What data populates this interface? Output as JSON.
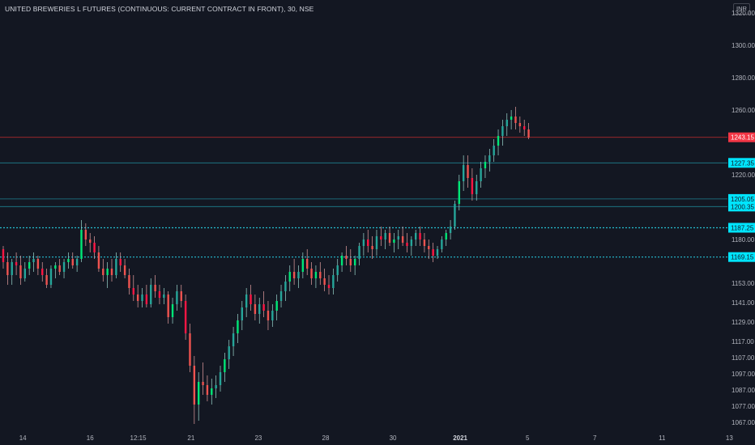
{
  "header": {
    "title": "UNITED BREWERIES L FUTURES (CONTINUOUS: CURRENT CONTRACT IN FRONT), 30, NSE",
    "currency": "INR"
  },
  "colors": {
    "background": "#131722",
    "up": "#26a69a",
    "up_bright": "#00e676",
    "down": "#ef5350",
    "down_bright": "#ff1744",
    "level_line": "#26c6da",
    "price_line": "#d32f2f"
  },
  "chart_data": {
    "type": "candlestick",
    "title": "UNITED BREWERIES L FUTURES (CONTINUOUS: CURRENT CONTRACT IN FRONT), 30, NSE",
    "ylim": [
      1062,
      1328
    ],
    "y_ticks": [
      "1320.00",
      "1300.00",
      "1280.00",
      "1260.00",
      "1220.00",
      "1180.00",
      "1153.00",
      "1141.00",
      "1129.00",
      "1117.00",
      "1107.00",
      "1097.00",
      "1087.00",
      "1077.00",
      "1067.00"
    ],
    "y_tick_values": [
      1320,
      1300,
      1280,
      1260,
      1220,
      1180,
      1153,
      1141,
      1129,
      1117,
      1107,
      1097,
      1087,
      1077,
      1067
    ],
    "x_ticks": [
      {
        "label": "14",
        "index": 4
      },
      {
        "label": "16",
        "index": 18
      },
      {
        "label": "12:15",
        "index": 28
      },
      {
        "label": "21",
        "index": 39
      },
      {
        "label": "23",
        "index": 53
      },
      {
        "label": "28",
        "index": 67
      },
      {
        "label": "30",
        "index": 81
      },
      {
        "label": "2021",
        "index": 95,
        "bold": true
      },
      {
        "label": "5",
        "index": 109
      },
      {
        "label": "7",
        "index": 123
      },
      {
        "label": "11",
        "index": 137
      },
      {
        "label": "13",
        "index": 151
      },
      {
        "label": "12:15",
        "index": 161
      }
    ],
    "levels": [
      {
        "value": 1227.35,
        "label": "1227.35",
        "style": "solid"
      },
      {
        "value": 1205.05,
        "label": "1205.05",
        "style": "solid"
      },
      {
        "value": 1200.35,
        "label": "1200.35",
        "style": "solid"
      },
      {
        "value": 1187.25,
        "label": "1187.25",
        "style": "dotted"
      },
      {
        "value": 1169.15,
        "label": "1169.15",
        "style": "dotted"
      }
    ],
    "last_price": {
      "value": 1243.15,
      "label": "1243.15"
    },
    "grid": false,
    "candles": [
      [
        1174,
        1176,
        1162,
        1166
      ],
      [
        1166,
        1172,
        1152,
        1158
      ],
      [
        1158,
        1168,
        1152,
        1166
      ],
      [
        1166,
        1172,
        1158,
        1164
      ],
      [
        1164,
        1170,
        1152,
        1156
      ],
      [
        1156,
        1166,
        1154,
        1162
      ],
      [
        1162,
        1170,
        1158,
        1166
      ],
      [
        1166,
        1172,
        1160,
        1168
      ],
      [
        1168,
        1170,
        1158,
        1162
      ],
      [
        1162,
        1166,
        1154,
        1158
      ],
      [
        1158,
        1162,
        1150,
        1152
      ],
      [
        1152,
        1164,
        1150,
        1162
      ],
      [
        1162,
        1166,
        1156,
        1164
      ],
      [
        1164,
        1168,
        1158,
        1160
      ],
      [
        1160,
        1168,
        1156,
        1166
      ],
      [
        1166,
        1172,
        1162,
        1168
      ],
      [
        1168,
        1172,
        1162,
        1164
      ],
      [
        1164,
        1170,
        1160,
        1168
      ],
      [
        1168,
        1192,
        1166,
        1186
      ],
      [
        1186,
        1190,
        1176,
        1180
      ],
      [
        1180,
        1184,
        1172,
        1178
      ],
      [
        1178,
        1182,
        1168,
        1172
      ],
      [
        1172,
        1176,
        1160,
        1162
      ],
      [
        1162,
        1168,
        1154,
        1158
      ],
      [
        1158,
        1166,
        1150,
        1162
      ],
      [
        1162,
        1168,
        1154,
        1158
      ],
      [
        1158,
        1172,
        1156,
        1168
      ],
      [
        1168,
        1172,
        1160,
        1164
      ],
      [
        1164,
        1168,
        1156,
        1158
      ],
      [
        1158,
        1162,
        1146,
        1150
      ],
      [
        1150,
        1158,
        1142,
        1146
      ],
      [
        1146,
        1152,
        1138,
        1142
      ],
      [
        1142,
        1150,
        1138,
        1146
      ],
      [
        1146,
        1152,
        1138,
        1140
      ],
      [
        1140,
        1156,
        1138,
        1152
      ],
      [
        1152,
        1158,
        1144,
        1148
      ],
      [
        1148,
        1152,
        1140,
        1144
      ],
      [
        1144,
        1150,
        1140,
        1146
      ],
      [
        1146,
        1148,
        1128,
        1132
      ],
      [
        1132,
        1144,
        1128,
        1140
      ],
      [
        1140,
        1152,
        1136,
        1148
      ],
      [
        1148,
        1152,
        1138,
        1142
      ],
      [
        1142,
        1146,
        1118,
        1122
      ],
      [
        1122,
        1128,
        1098,
        1102
      ],
      [
        1102,
        1108,
        1066,
        1078
      ],
      [
        1078,
        1098,
        1068,
        1092
      ],
      [
        1092,
        1104,
        1084,
        1090
      ],
      [
        1090,
        1096,
        1080,
        1084
      ],
      [
        1084,
        1094,
        1078,
        1088
      ],
      [
        1088,
        1096,
        1082,
        1090
      ],
      [
        1090,
        1102,
        1086,
        1098
      ],
      [
        1098,
        1110,
        1092,
        1106
      ],
      [
        1106,
        1118,
        1100,
        1114
      ],
      [
        1114,
        1126,
        1108,
        1122
      ],
      [
        1122,
        1134,
        1116,
        1130
      ],
      [
        1130,
        1142,
        1124,
        1138
      ],
      [
        1138,
        1150,
        1132,
        1146
      ],
      [
        1146,
        1152,
        1136,
        1140
      ],
      [
        1140,
        1146,
        1130,
        1134
      ],
      [
        1134,
        1144,
        1128,
        1140
      ],
      [
        1140,
        1148,
        1132,
        1136
      ],
      [
        1136,
        1142,
        1124,
        1130
      ],
      [
        1130,
        1140,
        1126,
        1136
      ],
      [
        1136,
        1146,
        1130,
        1142
      ],
      [
        1142,
        1152,
        1138,
        1148
      ],
      [
        1148,
        1158,
        1142,
        1154
      ],
      [
        1154,
        1164,
        1148,
        1160
      ],
      [
        1160,
        1168,
        1152,
        1156
      ],
      [
        1156,
        1164,
        1150,
        1160
      ],
      [
        1160,
        1172,
        1156,
        1168
      ],
      [
        1168,
        1174,
        1158,
        1162
      ],
      [
        1162,
        1166,
        1152,
        1156
      ],
      [
        1156,
        1164,
        1150,
        1160
      ],
      [
        1160,
        1166,
        1152,
        1156
      ],
      [
        1156,
        1162,
        1148,
        1152
      ],
      [
        1152,
        1158,
        1146,
        1150
      ],
      [
        1150,
        1162,
        1146,
        1158
      ],
      [
        1158,
        1168,
        1154,
        1164
      ],
      [
        1164,
        1172,
        1160,
        1170
      ],
      [
        1170,
        1176,
        1164,
        1168
      ],
      [
        1168,
        1174,
        1160,
        1164
      ],
      [
        1164,
        1170,
        1158,
        1168
      ],
      [
        1168,
        1178,
        1164,
        1176
      ],
      [
        1176,
        1184,
        1170,
        1180
      ],
      [
        1180,
        1186,
        1172,
        1176
      ],
      [
        1176,
        1182,
        1168,
        1174
      ],
      [
        1174,
        1186,
        1170,
        1182
      ],
      [
        1182,
        1188,
        1176,
        1180
      ],
      [
        1180,
        1186,
        1174,
        1184
      ],
      [
        1184,
        1188,
        1176,
        1178
      ],
      [
        1178,
        1184,
        1172,
        1180
      ],
      [
        1180,
        1186,
        1174,
        1182
      ],
      [
        1182,
        1188,
        1176,
        1178
      ],
      [
        1178,
        1184,
        1172,
        1176
      ],
      [
        1176,
        1182,
        1170,
        1180
      ],
      [
        1180,
        1186,
        1176,
        1184
      ],
      [
        1184,
        1188,
        1176,
        1180
      ],
      [
        1180,
        1184,
        1172,
        1176
      ],
      [
        1176,
        1180,
        1168,
        1174
      ],
      [
        1174,
        1178,
        1166,
        1170
      ],
      [
        1170,
        1176,
        1168,
        1174
      ],
      [
        1174,
        1182,
        1172,
        1180
      ],
      [
        1180,
        1186,
        1176,
        1184
      ],
      [
        1184,
        1192,
        1180,
        1188
      ],
      [
        1188,
        1204,
        1186,
        1202
      ],
      [
        1202,
        1220,
        1198,
        1216
      ],
      [
        1216,
        1232,
        1210,
        1226
      ],
      [
        1226,
        1232,
        1212,
        1218
      ],
      [
        1218,
        1224,
        1204,
        1208
      ],
      [
        1208,
        1220,
        1204,
        1216
      ],
      [
        1216,
        1228,
        1212,
        1224
      ],
      [
        1224,
        1232,
        1218,
        1228
      ],
      [
        1228,
        1236,
        1222,
        1232
      ],
      [
        1232,
        1242,
        1228,
        1238
      ],
      [
        1238,
        1248,
        1232,
        1244
      ],
      [
        1244,
        1254,
        1238,
        1250
      ],
      [
        1250,
        1258,
        1244,
        1254
      ],
      [
        1254,
        1260,
        1248,
        1256
      ],
      [
        1256,
        1262,
        1248,
        1252
      ],
      [
        1252,
        1256,
        1246,
        1250
      ],
      [
        1250,
        1254,
        1244,
        1248
      ],
      [
        1248,
        1252,
        1242,
        1243
      ]
    ]
  }
}
